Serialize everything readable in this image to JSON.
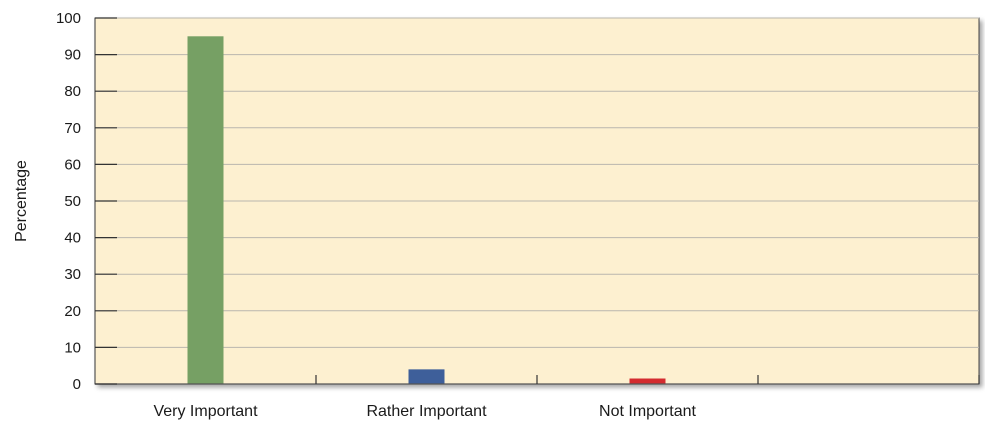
{
  "chart_data": {
    "type": "bar",
    "title": "",
    "xlabel": "",
    "ylabel": "Percentage",
    "ylim": [
      0,
      100
    ],
    "yticks": [
      0,
      10,
      20,
      30,
      40,
      50,
      60,
      70,
      80,
      90,
      100
    ],
    "tick_labels": [
      "0",
      "10",
      "20",
      "30",
      "40",
      "50",
      "60",
      "70",
      "80",
      "90",
      "100"
    ],
    "category_slots": 4,
    "categories": [
      "Very Important",
      "Rather Important",
      "Not Important"
    ],
    "values": [
      95,
      4,
      1.5
    ],
    "bar_colors": [
      "#76a064",
      "#3e5f9a",
      "#d42b2f"
    ],
    "plot_background": "#fdf0d0",
    "gridlines": true,
    "legend": "none"
  }
}
